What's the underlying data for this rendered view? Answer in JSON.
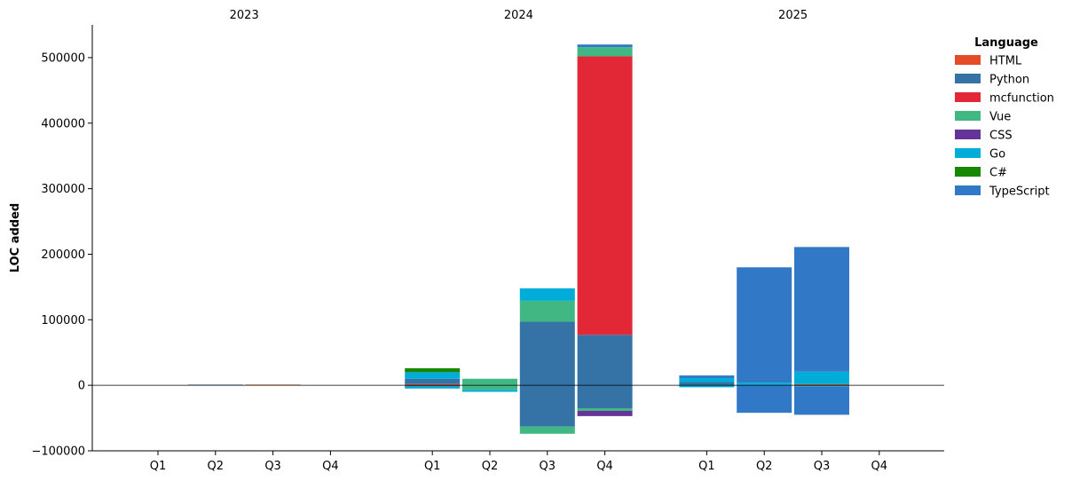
{
  "chart_data": {
    "type": "bar",
    "stacked": true,
    "ylabel": "LOC added",
    "ylim": [
      -100000,
      550000
    ],
    "yticks": [
      -100000,
      0,
      100000,
      200000,
      300000,
      400000,
      500000
    ],
    "ytick_labels": [
      "−100000",
      "0",
      "100000",
      "200000",
      "300000",
      "400000",
      "500000"
    ],
    "groups": [
      "2023",
      "2024",
      "2025"
    ],
    "quarters": [
      "Q1",
      "Q2",
      "Q3",
      "Q4"
    ],
    "legend": {
      "title": "Language",
      "placement": "top-right, outside plot"
    },
    "series": [
      {
        "name": "HTML",
        "color": "#e34c26"
      },
      {
        "name": "Python",
        "color": "#3572a5"
      },
      {
        "name": "mcfunction",
        "color": "#e22837"
      },
      {
        "name": "Vue",
        "color": "#41b883"
      },
      {
        "name": "CSS",
        "color": "#663399"
      },
      {
        "name": "Go",
        "color": "#00add8"
      },
      {
        "name": "C#",
        "color": "#178600"
      },
      {
        "name": "TypeScript",
        "color": "#3178c6"
      }
    ],
    "bars": [
      {
        "group": "2023",
        "quarter": "Q1",
        "pos": [],
        "neg": []
      },
      {
        "group": "2023",
        "quarter": "Q2",
        "pos": [
          {
            "series": "Python",
            "value": 1000
          }
        ],
        "neg": []
      },
      {
        "group": "2023",
        "quarter": "Q3",
        "pos": [
          {
            "series": "HTML",
            "value": 1000
          }
        ],
        "neg": []
      },
      {
        "group": "2023",
        "quarter": "Q4",
        "pos": [],
        "neg": []
      },
      {
        "group": "2024",
        "quarter": "Q1",
        "pos": [
          {
            "series": "HTML",
            "value": 2000
          },
          {
            "series": "Python",
            "value": 8000
          },
          {
            "series": "Go",
            "value": 10000
          },
          {
            "series": "C#",
            "value": 6000
          }
        ],
        "neg": [
          {
            "series": "Python",
            "value": -2000
          },
          {
            "series": "Go",
            "value": -3000
          }
        ]
      },
      {
        "group": "2024",
        "quarter": "Q2",
        "pos": [
          {
            "series": "Vue",
            "value": 10000
          }
        ],
        "neg": [
          {
            "series": "Vue",
            "value": -7000
          },
          {
            "series": "Go",
            "value": -3000
          }
        ]
      },
      {
        "group": "2024",
        "quarter": "Q3",
        "pos": [
          {
            "series": "Python",
            "value": 97000
          },
          {
            "series": "Vue",
            "value": 32000
          },
          {
            "series": "Go",
            "value": 19000
          }
        ],
        "neg": [
          {
            "series": "Python",
            "value": -63000
          },
          {
            "series": "Vue",
            "value": -11000
          }
        ]
      },
      {
        "group": "2024",
        "quarter": "Q4",
        "pos": [
          {
            "series": "Python",
            "value": 77000
          },
          {
            "series": "mcfunction",
            "value": 425000
          },
          {
            "series": "Vue",
            "value": 14000
          },
          {
            "series": "TypeScript",
            "value": 4000
          }
        ],
        "neg": [
          {
            "series": "Python",
            "value": -35000
          },
          {
            "series": "Vue",
            "value": -4000
          },
          {
            "series": "CSS",
            "value": -8000
          }
        ]
      },
      {
        "group": "2025",
        "quarter": "Q1",
        "pos": [
          {
            "series": "Python",
            "value": 5000
          },
          {
            "series": "Go",
            "value": 6000
          },
          {
            "series": "TypeScript",
            "value": 4000
          }
        ],
        "neg": [
          {
            "series": "Go",
            "value": -3000
          }
        ]
      },
      {
        "group": "2025",
        "quarter": "Q2",
        "pos": [
          {
            "series": "Go",
            "value": 4000
          },
          {
            "series": "TypeScript",
            "value": 176000
          }
        ],
        "neg": [
          {
            "series": "TypeScript",
            "value": -42000
          }
        ]
      },
      {
        "group": "2025",
        "quarter": "Q3",
        "pos": [
          {
            "series": "HTML",
            "value": 2000
          },
          {
            "series": "Go",
            "value": 19000
          },
          {
            "series": "TypeScript",
            "value": 190000
          }
        ],
        "neg": [
          {
            "series": "Go",
            "value": -2000
          },
          {
            "series": "TypeScript",
            "value": -43000
          }
        ]
      },
      {
        "group": "2025",
        "quarter": "Q4",
        "pos": [],
        "neg": []
      }
    ]
  }
}
